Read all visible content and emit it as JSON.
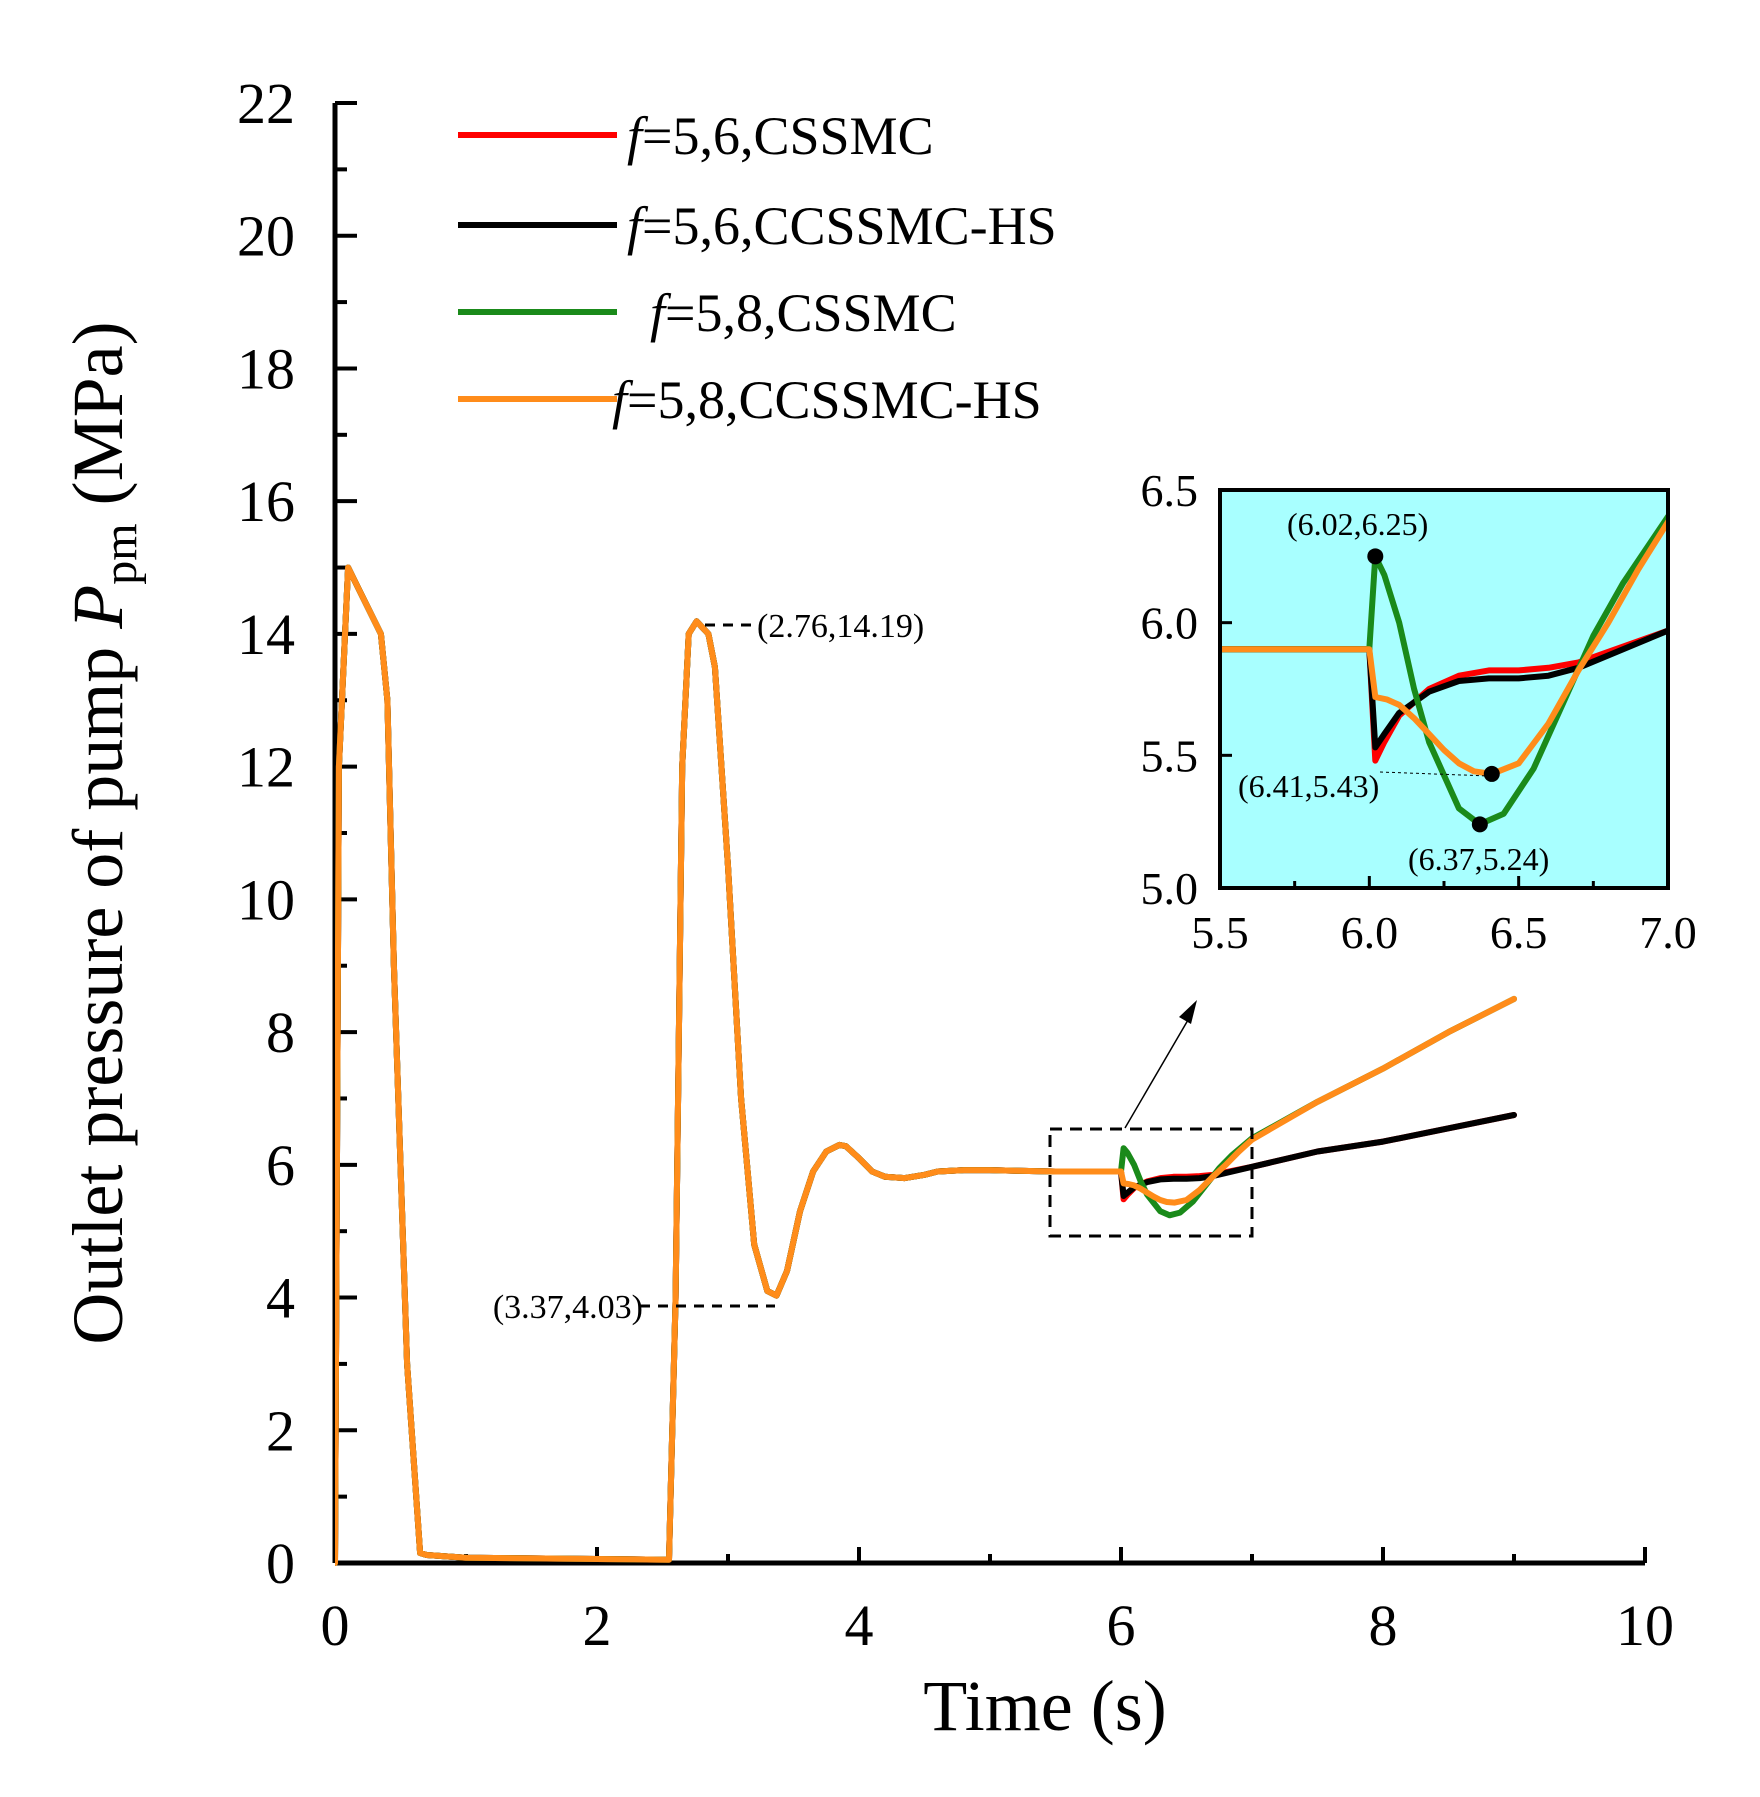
{
  "chart_data": {
    "type": "line",
    "xlabel": "Time (s)",
    "ylabel": {
      "prefix": "Outlet pressure of pump ",
      "symbol": "P",
      "subscript": "pm",
      "unit": " (MPa)"
    },
    "xlim": [
      0,
      10
    ],
    "ylim": [
      0,
      22
    ],
    "xticks": [
      0,
      2,
      4,
      6,
      8,
      10
    ],
    "yticks": [
      0,
      2,
      4,
      6,
      8,
      10,
      12,
      14,
      16,
      18,
      20,
      22
    ],
    "legend": {
      "position": "top-left",
      "entries": [
        {
          "italic": "f",
          "text": "=5,6,CSSMC",
          "color": "#ff0000"
        },
        {
          "italic": "f",
          "text": "=5,6,CCSSMC-HS",
          "color": "#000000"
        },
        {
          "italic": "f",
          "text": "=5,8,CSSMC",
          "color": "#1a8a1a"
        },
        {
          "italic": "f",
          "text": "=5,8,CCSSMC-HS",
          "color": "#ff8c1a"
        }
      ]
    },
    "series": [
      {
        "name": "f=5,6,CSSMC",
        "color": "#ff0000",
        "x": [
          0,
          0.03,
          0.1,
          0.2,
          0.35,
          0.4,
          0.45,
          0.55,
          0.65,
          0.7,
          1.0,
          2.0,
          2.55,
          2.6,
          2.65,
          2.7,
          2.76,
          2.85,
          2.9,
          3.0,
          3.1,
          3.2,
          3.3,
          3.37,
          3.45,
          3.55,
          3.65,
          3.75,
          3.85,
          3.9,
          4.0,
          4.1,
          4.2,
          4.35,
          4.5,
          4.6,
          4.8,
          5.0,
          5.2,
          5.5,
          5.8,
          6.0,
          6.02,
          6.05,
          6.1,
          6.2,
          6.3,
          6.4,
          6.5,
          6.6,
          6.7,
          7.0,
          7.5,
          8.0,
          8.5,
          9.0
        ],
        "y": [
          0,
          12,
          15,
          14.6,
          14.0,
          13.0,
          9.0,
          3.0,
          0.15,
          0.12,
          0.08,
          0.06,
          0.05,
          4.0,
          12.0,
          14.0,
          14.19,
          14.0,
          13.5,
          10.5,
          7.0,
          4.8,
          4.1,
          4.03,
          4.4,
          5.3,
          5.9,
          6.2,
          6.3,
          6.28,
          6.1,
          5.9,
          5.82,
          5.8,
          5.85,
          5.9,
          5.92,
          5.92,
          5.91,
          5.9,
          5.9,
          5.9,
          5.48,
          5.55,
          5.65,
          5.75,
          5.8,
          5.82,
          5.82,
          5.83,
          5.85,
          5.97,
          6.2,
          6.35,
          6.55,
          6.75
        ]
      },
      {
        "name": "f=5,6,CCSSMC-HS",
        "color": "#000000",
        "x": [
          0,
          0.03,
          0.1,
          0.2,
          0.35,
          0.4,
          0.45,
          0.55,
          0.65,
          0.7,
          1.0,
          2.0,
          2.55,
          2.6,
          2.65,
          2.7,
          2.76,
          2.85,
          2.9,
          3.0,
          3.1,
          3.2,
          3.3,
          3.37,
          3.45,
          3.55,
          3.65,
          3.75,
          3.85,
          3.9,
          4.0,
          4.1,
          4.2,
          4.35,
          4.5,
          4.6,
          4.8,
          5.0,
          5.2,
          5.5,
          5.8,
          6.0,
          6.02,
          6.05,
          6.1,
          6.2,
          6.3,
          6.4,
          6.5,
          6.6,
          6.7,
          7.0,
          7.5,
          8.0,
          8.5,
          9.0
        ],
        "y": [
          0,
          12,
          15,
          14.6,
          14.0,
          13.0,
          9.0,
          3.0,
          0.15,
          0.12,
          0.08,
          0.06,
          0.05,
          4.0,
          12.0,
          14.0,
          14.19,
          14.0,
          13.5,
          10.5,
          7.0,
          4.8,
          4.1,
          4.03,
          4.4,
          5.3,
          5.9,
          6.2,
          6.3,
          6.28,
          6.1,
          5.9,
          5.82,
          5.8,
          5.85,
          5.9,
          5.92,
          5.92,
          5.91,
          5.9,
          5.9,
          5.9,
          5.53,
          5.58,
          5.66,
          5.74,
          5.78,
          5.79,
          5.79,
          5.8,
          5.83,
          5.97,
          6.2,
          6.35,
          6.55,
          6.75
        ]
      },
      {
        "name": "f=5,8,CSSMC",
        "color": "#1a8a1a",
        "x": [
          0,
          0.03,
          0.1,
          0.2,
          0.35,
          0.4,
          0.45,
          0.55,
          0.65,
          0.7,
          1.0,
          2.0,
          2.55,
          2.6,
          2.65,
          2.7,
          2.76,
          2.85,
          2.9,
          3.0,
          3.1,
          3.2,
          3.3,
          3.37,
          3.45,
          3.55,
          3.65,
          3.75,
          3.85,
          3.9,
          4.0,
          4.1,
          4.2,
          4.35,
          4.5,
          4.6,
          4.8,
          5.0,
          5.2,
          5.5,
          5.8,
          6.0,
          6.02,
          6.05,
          6.1,
          6.15,
          6.2,
          6.3,
          6.37,
          6.45,
          6.55,
          6.65,
          6.75,
          6.85,
          7.0,
          7.5,
          8.0,
          8.5,
          9.0
        ],
        "y": [
          0,
          12,
          15,
          14.6,
          14.0,
          13.0,
          9.0,
          3.0,
          0.15,
          0.12,
          0.08,
          0.06,
          0.05,
          4.0,
          12.0,
          14.0,
          14.19,
          14.0,
          13.5,
          10.5,
          7.0,
          4.8,
          4.1,
          4.03,
          4.4,
          5.3,
          5.9,
          6.2,
          6.3,
          6.28,
          6.1,
          5.9,
          5.82,
          5.8,
          5.85,
          5.9,
          5.92,
          5.92,
          5.91,
          5.9,
          5.9,
          5.9,
          6.25,
          6.18,
          6.0,
          5.75,
          5.55,
          5.3,
          5.24,
          5.28,
          5.45,
          5.7,
          5.95,
          6.15,
          6.4,
          6.95,
          7.45,
          8.0,
          8.5
        ]
      },
      {
        "name": "f=5,8,CCSSMC-HS",
        "color": "#ff8c1a",
        "x": [
          0,
          0.03,
          0.1,
          0.2,
          0.35,
          0.4,
          0.45,
          0.55,
          0.65,
          0.7,
          1.0,
          2.0,
          2.55,
          2.6,
          2.65,
          2.7,
          2.76,
          2.85,
          2.9,
          3.0,
          3.1,
          3.2,
          3.3,
          3.37,
          3.45,
          3.55,
          3.65,
          3.75,
          3.85,
          3.9,
          4.0,
          4.1,
          4.2,
          4.35,
          4.5,
          4.6,
          4.8,
          5.0,
          5.2,
          5.5,
          5.8,
          6.0,
          6.02,
          6.06,
          6.1,
          6.15,
          6.2,
          6.25,
          6.3,
          6.35,
          6.41,
          6.5,
          6.6,
          6.7,
          6.8,
          6.9,
          7.0,
          7.5,
          8.0,
          8.5,
          9.0
        ],
        "y": [
          0,
          12,
          15,
          14.6,
          14.0,
          13.0,
          9.0,
          3.0,
          0.15,
          0.12,
          0.08,
          0.06,
          0.05,
          4.0,
          12.0,
          14.0,
          14.19,
          14.0,
          13.5,
          10.5,
          7.0,
          4.8,
          4.1,
          4.03,
          4.4,
          5.3,
          5.9,
          6.2,
          6.3,
          6.28,
          6.1,
          5.9,
          5.82,
          5.8,
          5.85,
          5.9,
          5.92,
          5.92,
          5.91,
          5.9,
          5.9,
          5.9,
          5.72,
          5.71,
          5.69,
          5.64,
          5.58,
          5.52,
          5.47,
          5.44,
          5.43,
          5.47,
          5.62,
          5.82,
          6.0,
          6.2,
          6.38,
          6.95,
          7.45,
          8.0,
          8.5
        ]
      }
    ],
    "annotations": [
      {
        "label": "(2.76,14.19)",
        "x": 2.76,
        "y": 14.19
      },
      {
        "label": "(3.37,4.03)",
        "x": 3.37,
        "y": 4.03
      }
    ],
    "inset": {
      "xlim": [
        5.5,
        7.0
      ],
      "ylim": [
        5.0,
        6.5
      ],
      "xticks": [
        "5.5",
        "6.0",
        "6.5",
        "7.0"
      ],
      "yticks": [
        "5.0",
        "5.5",
        "6.0",
        "6.5"
      ],
      "background": "#a8ffff",
      "zoom_region": {
        "x": [
          5.5,
          7.0
        ],
        "y": [
          4.95,
          6.6
        ]
      },
      "points": [
        {
          "label": "(6.02,6.25)",
          "x": 6.02,
          "y": 6.25
        },
        {
          "label": "(6.41,5.43)",
          "x": 6.41,
          "y": 5.43
        },
        {
          "label": "(6.37,5.24)",
          "x": 6.37,
          "y": 5.24
        }
      ]
    }
  }
}
